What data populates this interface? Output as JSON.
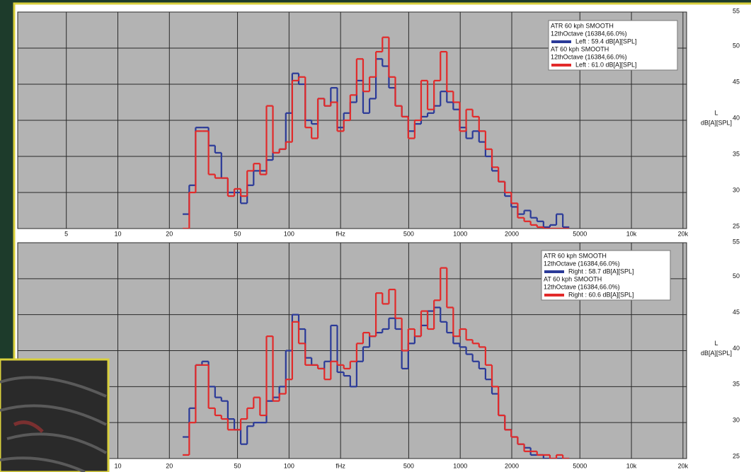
{
  "chart_data": [
    {
      "type": "line",
      "step": true,
      "log_x": true,
      "grid": true,
      "x": [
        25,
        27.3,
        29.7,
        32.4,
        35.4,
        38.6,
        42,
        45.9,
        50,
        54.5,
        59.5,
        64.8,
        70.7,
        77.1,
        84,
        91.7,
        100,
        109,
        119,
        130,
        141,
        154,
        168,
        183,
        200,
        218,
        238,
        259,
        283,
        308,
        336,
        367,
        400,
        436,
        476,
        519,
        566,
        617,
        673,
        734,
        800,
        872,
        951,
        1037,
        1131,
        1233,
        1345,
        1467,
        1600,
        1745,
        1903,
        2075,
        2263,
        2468,
        2691,
        2935,
        3200,
        3490,
        3806,
        4150
      ],
      "series": [
        {
          "legend_lines": [
            "ATR 60 kph SMOOTH",
            "12thOctave (16384,66.0%)"
          ],
          "name": "Left : 59.4 dB[A][SPL]",
          "color": "#2b3a98",
          "values": [
            27,
            31,
            39,
            39,
            36.5,
            35.5,
            32,
            30,
            30,
            28.5,
            31,
            33,
            33,
            34.5,
            35.5,
            36,
            41,
            46.5,
            45,
            40,
            39.5,
            43,
            42,
            44.5,
            39,
            41,
            42.5,
            45.5,
            41,
            43,
            48.5,
            47.5,
            44.5,
            42,
            40.5,
            38.5,
            39.5,
            40.5,
            41,
            42,
            44,
            42.5,
            41.5,
            39,
            37.5,
            38.5,
            37,
            35,
            33,
            31.5,
            29.5,
            28,
            27,
            27.5,
            26.5,
            26,
            25.2,
            25.5,
            27,
            25.2
          ]
        },
        {
          "legend_lines": [
            "AT 60 kph SMOOTH",
            "12thOctave (16384,66.0%)"
          ],
          "name": "Left : 61.0 dB[A][SPL]",
          "color": "#e22a2a",
          "values": [
            25,
            30,
            38.5,
            38.5,
            32.5,
            32,
            32,
            29.5,
            30.5,
            29.5,
            33,
            34,
            32.5,
            42,
            35.5,
            36,
            37,
            45.5,
            46,
            39,
            37.5,
            43,
            42,
            42.5,
            38.5,
            40,
            43.5,
            48.5,
            44,
            46,
            49.5,
            51.5,
            46,
            42,
            40.5,
            37.5,
            40,
            45.5,
            41.5,
            45.5,
            49.5,
            44,
            42.5,
            38.5,
            41.5,
            40.5,
            38.5,
            36,
            33.5,
            31.5,
            30,
            28.5,
            26.5,
            26,
            25.5,
            25.2,
            25,
            25,
            25,
            25
          ]
        }
      ],
      "xlim": [
        2.6,
        21000
      ],
      "xticks": [
        {
          "value": 5,
          "label": "5"
        },
        10,
        20,
        50,
        100,
        {
          "value": 200,
          "label": "fHz"
        },
        500,
        1000,
        2000,
        5000,
        {
          "value": 10000,
          "label": "10k"
        },
        {
          "value": 20000,
          "label": "20k"
        }
      ],
      "ylim": [
        25,
        55
      ],
      "yticks": [
        25,
        30,
        35,
        40,
        45,
        50,
        55
      ],
      "ylabel_lines": [
        "L",
        "dB[A][SPL]"
      ]
    },
    {
      "type": "line",
      "step": true,
      "log_x": true,
      "grid": true,
      "x": [
        25,
        27.3,
        29.7,
        32.4,
        35.4,
        38.6,
        42,
        45.9,
        50,
        54.5,
        59.5,
        64.8,
        70.7,
        77.1,
        84,
        91.7,
        100,
        109,
        119,
        130,
        141,
        154,
        168,
        183,
        200,
        218,
        238,
        259,
        283,
        308,
        336,
        367,
        400,
        436,
        476,
        519,
        566,
        617,
        673,
        734,
        800,
        872,
        951,
        1037,
        1131,
        1233,
        1345,
        1467,
        1600,
        1745,
        1903,
        2075,
        2263,
        2468,
        2691,
        2935,
        3200,
        3490,
        3806,
        4150
      ],
      "series": [
        {
          "legend_lines": [
            "ATR 60 kph SMOOTH",
            "12thOctave (16384,66.0%)"
          ],
          "name": "Right : 58.7 dB[A][SPL]",
          "color": "#2b3a98",
          "values": [
            28,
            32,
            38,
            38.5,
            35,
            33.5,
            33,
            30.5,
            29,
            27,
            29.5,
            30,
            30,
            33,
            33.5,
            35,
            40,
            45,
            43,
            39,
            38,
            37.5,
            38.5,
            43.5,
            37,
            36.5,
            35,
            38.5,
            40.5,
            42,
            42.5,
            43,
            44.5,
            43,
            37.5,
            41,
            42,
            43.5,
            45.5,
            46,
            44,
            42.5,
            41,
            40.5,
            39.5,
            38.5,
            37.5,
            36,
            34,
            31,
            29,
            28,
            27,
            26.5,
            25.5,
            25.5,
            25,
            25,
            25,
            25
          ]
        },
        {
          "legend_lines": [
            "AT 60 kph SMOOTH",
            "12thOctave (16384,66.0%)"
          ],
          "name": "Right : 60.6 dB[A][SPL]",
          "color": "#e22a2a",
          "values": [
            25.5,
            30,
            38,
            38,
            32,
            31,
            30.5,
            29,
            29,
            30.5,
            32,
            33.5,
            31,
            42,
            33,
            34,
            36,
            44,
            41,
            38,
            38,
            37.5,
            36,
            38.5,
            38,
            37.5,
            38.5,
            41,
            42.5,
            42,
            48,
            46.5,
            48.5,
            44.5,
            40,
            43,
            42,
            45.5,
            43,
            47,
            51.5,
            46,
            42,
            43,
            41.5,
            41,
            40.5,
            38,
            35,
            31,
            29,
            28,
            27,
            26,
            26,
            25.5,
            25.5,
            25,
            25.5,
            25
          ]
        }
      ],
      "xlim": [
        2.6,
        21000
      ],
      "xticks": [
        10,
        20,
        50,
        100,
        {
          "value": 200,
          "label": "fHz"
        },
        500,
        1000,
        2000,
        5000,
        {
          "value": 10000,
          "label": "10k"
        },
        {
          "value": 20000,
          "label": "20k"
        }
      ],
      "ylim": [
        25,
        55
      ],
      "yticks": [
        25,
        30,
        35,
        40,
        45,
        50,
        55
      ],
      "ylabel_lines": [
        "L",
        "dB[A][SPL]"
      ]
    }
  ]
}
